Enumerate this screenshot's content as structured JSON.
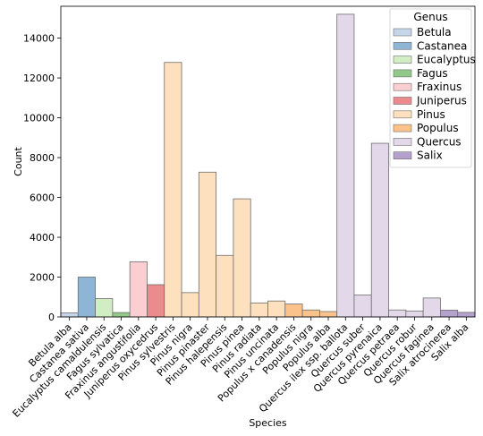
{
  "chart_data": {
    "type": "bar",
    "xlabel": "Species",
    "ylabel": "Count",
    "ylim": [
      0,
      15600
    ],
    "yticks": [
      0,
      2000,
      4000,
      6000,
      8000,
      10000,
      12000,
      14000
    ],
    "grid": false,
    "legend": {
      "title": "Genus",
      "placement": "top-right",
      "entries": [
        {
          "name": "Betula",
          "color": "#c6d6ea"
        },
        {
          "name": "Castanea",
          "color": "#8fb5d6"
        },
        {
          "name": "Eucalyptus",
          "color": "#d2ecc4"
        },
        {
          "name": "Fagus",
          "color": "#93c988"
        },
        {
          "name": "Fraxinus",
          "color": "#fbcfd2"
        },
        {
          "name": "Juniperus",
          "color": "#ec8b8d"
        },
        {
          "name": "Pinus",
          "color": "#fde0bd"
        },
        {
          "name": "Populus",
          "color": "#fbc28c"
        },
        {
          "name": "Quercus",
          "color": "#e2d8ea"
        },
        {
          "name": "Salix",
          "color": "#b4a2cc"
        }
      ]
    },
    "categories": [
      "Betula alba",
      "Castanea sativa",
      "Eucalyptus camaldulensis",
      "Fagus sylvatica",
      "Fraxinus angustifolia",
      "Juniperus oxycedrus",
      "Pinus sylvestris",
      "Pinus nigra",
      "Pinus pinaster",
      "Pinus halepensis",
      "Pinus pinea",
      "Pinus radiata",
      "Pinus uncinata",
      "Populus x canadensis",
      "Populus nigra",
      "Populus alba",
      "Quercus ilex ssp. ballota",
      "Quercus suber",
      "Quercus pyrenaica",
      "Quercus petraea",
      "Quercus robur",
      "Quercus faginea",
      "Salix atrocinerea",
      "Salix alba"
    ],
    "genus": [
      "Betula",
      "Castanea",
      "Eucalyptus",
      "Fagus",
      "Fraxinus",
      "Juniperus",
      "Pinus",
      "Pinus",
      "Pinus",
      "Pinus",
      "Pinus",
      "Pinus",
      "Pinus",
      "Populus",
      "Populus",
      "Populus",
      "Quercus",
      "Quercus",
      "Quercus",
      "Quercus",
      "Quercus",
      "Quercus",
      "Salix",
      "Salix"
    ],
    "values": [
      200,
      2000,
      920,
      220,
      2770,
      1620,
      12780,
      1220,
      7270,
      3090,
      5930,
      700,
      800,
      650,
      350,
      270,
      15200,
      1100,
      8720,
      350,
      300,
      950,
      340,
      230
    ]
  }
}
